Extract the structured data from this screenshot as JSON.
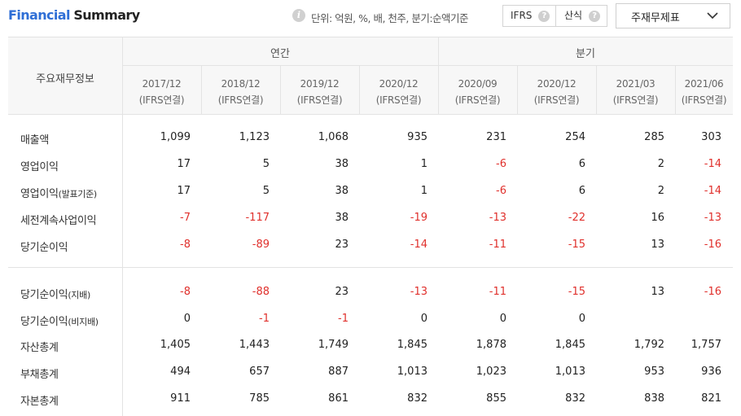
{
  "header": {
    "title_part1": "Financial",
    "title_part2": "Summary",
    "info_icon": "i",
    "unit_text": "단위: 억원, %, 배, 천주, 분기:순액기준",
    "toggle_ifrs": "IFRS",
    "toggle_calc": "산식",
    "help_glyph": "?",
    "dropdown_label": "주재무제표"
  },
  "table": {
    "row_header_title": "주요재무정보",
    "groups": {
      "annual": "연간",
      "quarterly": "분기"
    },
    "columns": [
      {
        "period": "2017/12",
        "basis": "(IFRS연결)"
      },
      {
        "period": "2018/12",
        "basis": "(IFRS연결)"
      },
      {
        "period": "2019/12",
        "basis": "(IFRS연결)"
      },
      {
        "period": "2020/12",
        "basis": "(IFRS연결)"
      },
      {
        "period": "2020/09",
        "basis": "(IFRS연결)"
      },
      {
        "period": "2020/12",
        "basis": "(IFRS연결)"
      },
      {
        "period": "2021/03",
        "basis": "(IFRS연결)"
      },
      {
        "period": "2021/06",
        "basis": "(IFRS연결)"
      }
    ],
    "rows": [
      {
        "label": "매출액",
        "label_suffix": "",
        "values": [
          "1,099",
          "1,123",
          "1,068",
          "935",
          "231",
          "254",
          "285",
          "303"
        ]
      },
      {
        "label": "영업이익",
        "label_suffix": "",
        "values": [
          "17",
          "5",
          "38",
          "1",
          "-6",
          "6",
          "2",
          "-14"
        ]
      },
      {
        "label": "영업이익",
        "label_suffix": "(발표기준)",
        "values": [
          "17",
          "5",
          "38",
          "1",
          "-6",
          "6",
          "2",
          "-14"
        ]
      },
      {
        "label": "세전계속사업이익",
        "label_suffix": "",
        "values": [
          "-7",
          "-117",
          "38",
          "-19",
          "-13",
          "-22",
          "16",
          "-13"
        ]
      },
      {
        "label": "당기순이익",
        "label_suffix": "",
        "values": [
          "-8",
          "-89",
          "23",
          "-14",
          "-11",
          "-15",
          "13",
          "-16"
        ]
      },
      {
        "label": "당기순이익",
        "label_suffix": "(지배)",
        "values": [
          "-8",
          "-88",
          "23",
          "-13",
          "-11",
          "-15",
          "13",
          "-16"
        ]
      },
      {
        "label": "당기순이익",
        "label_suffix": "(비지배)",
        "values": [
          "0",
          "-1",
          "-1",
          "0",
          "0",
          "0",
          "",
          ""
        ]
      },
      {
        "label": "자산총계",
        "label_suffix": "",
        "values": [
          "1,405",
          "1,443",
          "1,749",
          "1,845",
          "1,878",
          "1,845",
          "1,792",
          "1,757"
        ]
      },
      {
        "label": "부채총계",
        "label_suffix": "",
        "values": [
          "494",
          "657",
          "887",
          "1,013",
          "1,023",
          "1,013",
          "953",
          "936"
        ]
      },
      {
        "label": "자본총계",
        "label_suffix": "",
        "values": [
          "911",
          "785",
          "861",
          "832",
          "855",
          "832",
          "838",
          "821"
        ]
      }
    ]
  }
}
